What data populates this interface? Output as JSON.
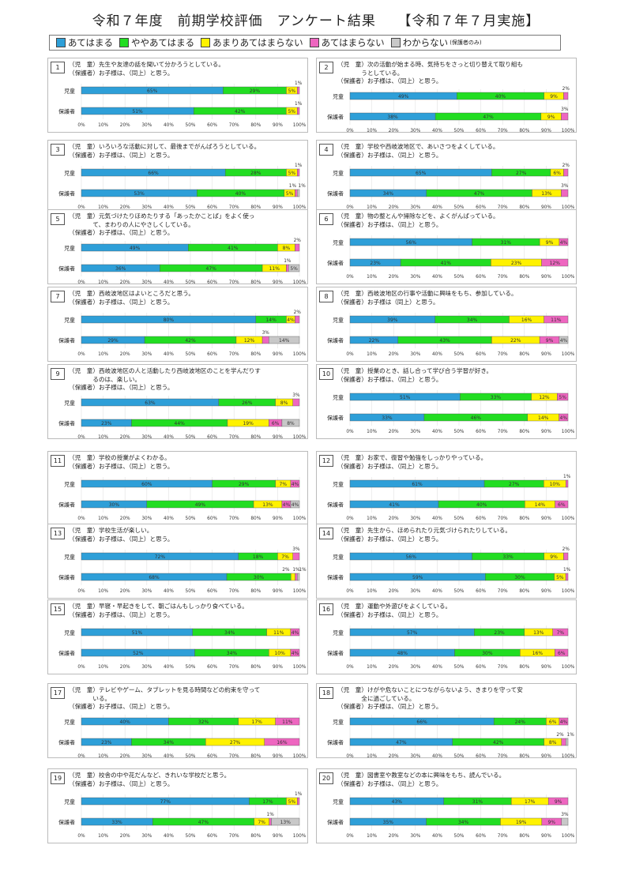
{
  "page": {
    "title": "令和７年度　前期学校評価　アンケート結果　　【令和７年７月実施】"
  },
  "legend": [
    {
      "label": "あてはまる",
      "color": "#2E9FD8"
    },
    {
      "label": "ややあてはまる",
      "color": "#22DD22"
    },
    {
      "label": "あまりあてはまらない",
      "color": "#FFF200"
    },
    {
      "label": "あてはまらない",
      "color": "#EE66C0"
    },
    {
      "label": "わからない",
      "color": "#C8C8C8",
      "note": "(保護者のみ)"
    }
  ],
  "axis_ticks": [
    "0%",
    "10%",
    "20%",
    "30%",
    "40%",
    "50%",
    "60%",
    "70%",
    "80%",
    "90%",
    "100%"
  ],
  "chart_data": [
    {
      "type": "bar",
      "num": "1",
      "q": "（児　童）先生や友達の話を聞いて分かろうとしている。\n（保護者）お子様は、（同上）と思う。",
      "rows": [
        {
          "label": "児童",
          "values": [
            65,
            29,
            5,
            1
          ],
          "labels": [
            "65%",
            "29%",
            "5%",
            "1%"
          ]
        },
        {
          "label": "保護者",
          "values": [
            51,
            42,
            5,
            1
          ],
          "labels": [
            "51%",
            "42%",
            "5%",
            "1%"
          ]
        }
      ]
    },
    {
      "type": "bar",
      "num": "2",
      "q": "（児　童）次の活動が始まる時、気持ちをさっと切り替えて取り組も\n　　　　うとしている。\n（保護者）お子様は、（同上）と思う。",
      "rows": [
        {
          "label": "児童",
          "values": [
            49,
            40,
            9,
            2
          ],
          "labels": [
            "49%",
            "40%",
            "9%",
            "2%"
          ]
        },
        {
          "label": "保護者",
          "values": [
            38,
            47,
            9,
            3
          ],
          "labels": [
            "38%",
            "47%",
            "9%",
            "3%"
          ]
        }
      ]
    },
    {
      "type": "bar",
      "num": "3",
      "q": "（児　童）いろいろな活動に対して、最後までがんばろうとしている。\n（保護者）お子様は、（同上）と思う。",
      "rows": [
        {
          "label": "児童",
          "values": [
            66,
            28,
            5,
            1
          ],
          "labels": [
            "66%",
            "28%",
            "5%",
            "1%"
          ]
        },
        {
          "label": "保護者",
          "values": [
            53,
            40,
            5,
            1,
            1
          ],
          "labels": [
            "53%",
            "40%",
            "5%",
            "1%",
            "1%"
          ]
        }
      ]
    },
    {
      "type": "bar",
      "num": "4",
      "q": "（児　童）学校や西岐波地区で、あいさつをよくしている。\n（保護者）お子様は、（同上）と思う。",
      "rows": [
        {
          "label": "児童",
          "values": [
            65,
            27,
            6,
            2
          ],
          "labels": [
            "65%",
            "27%",
            "6%",
            "2%"
          ]
        },
        {
          "label": "保護者",
          "values": [
            34,
            47,
            13,
            3
          ],
          "labels": [
            "34%",
            "47%",
            "13%",
            "3%"
          ]
        }
      ]
    },
    {
      "type": "bar",
      "num": "5",
      "q": "（児　童）元気づけたりほめたりする「あったかことば」をよく使っ\n　　　　て、まわりの人にやさしくしている。\n（保護者）お子様は、（同上）と思う。",
      "rows": [
        {
          "label": "児童",
          "values": [
            49,
            41,
            8,
            2
          ],
          "labels": [
            "49%",
            "41%",
            "8%",
            "2%"
          ]
        },
        {
          "label": "保護者",
          "values": [
            36,
            47,
            11,
            1,
            5
          ],
          "labels": [
            "36%",
            "47%",
            "11%",
            "1%",
            "5%"
          ]
        }
      ]
    },
    {
      "type": "bar",
      "num": "6",
      "q": "（児　童）物の整とんや掃除などを、よくがんばっている。\n（保護者）お子様は、（同上）と思う。",
      "rows": [
        {
          "label": "児童",
          "values": [
            56,
            31,
            9,
            4
          ],
          "labels": [
            "56%",
            "31%",
            "9%",
            "4%"
          ]
        },
        {
          "label": "保護者",
          "values": [
            23,
            41,
            23,
            12
          ],
          "labels": [
            "23%",
            "41%",
            "23%",
            "12%"
          ]
        }
      ]
    },
    {
      "type": "bar",
      "num": "7",
      "q": "（児　童）西岐波地区はよいところだと思う。\n（保護者）お子様は、（同上）と思う。",
      "rows": [
        {
          "label": "児童",
          "values": [
            80,
            14,
            4,
            2
          ],
          "labels": [
            "80%",
            "14%",
            "4%",
            "2%"
          ]
        },
        {
          "label": "保護者",
          "values": [
            29,
            42,
            12,
            3,
            14
          ],
          "labels": [
            "29%",
            "42%",
            "12%",
            "3%",
            "14%"
          ]
        }
      ]
    },
    {
      "type": "bar",
      "num": "8",
      "q": "（児　童）西岐波地区の行事や活動に興味をもち、参加している。\n（保護者）お子様は（同上）と思う。",
      "rows": [
        {
          "label": "児童",
          "values": [
            39,
            34,
            16,
            11
          ],
          "labels": [
            "39%",
            "34%",
            "16%",
            "11%"
          ]
        },
        {
          "label": "保護者",
          "values": [
            22,
            43,
            22,
            9,
            4
          ],
          "labels": [
            "22%",
            "43%",
            "22%",
            "9%",
            "4%"
          ]
        }
      ]
    },
    {
      "type": "bar",
      "num": "9",
      "q": "（児　童）西岐波地区の人と活動したり西岐波地区のことを学んだりす\n　　　　るのは、楽しい。\n（保護者）お子様は、（同上）と思う。",
      "rows": [
        {
          "label": "児童",
          "values": [
            63,
            26,
            8,
            3
          ],
          "labels": [
            "63%",
            "26%",
            "8%",
            "3%"
          ]
        },
        {
          "label": "保護者",
          "values": [
            23,
            44,
            19,
            6,
            8
          ],
          "labels": [
            "23%",
            "44%",
            "19%",
            "6%",
            "8%"
          ]
        }
      ]
    },
    {
      "type": "bar",
      "num": "10",
      "q": "（児　童）授業のとき、話し合って学び合う学習が好き。\n（保護者）お子様は、（同上）と思う。",
      "rows": [
        {
          "label": "児童",
          "values": [
            51,
            33,
            12,
            5
          ],
          "labels": [
            "51%",
            "33%",
            "12%",
            "5%"
          ]
        },
        {
          "label": "保護者",
          "values": [
            33,
            46,
            14,
            4
          ],
          "labels": [
            "33%",
            "46%",
            "14%",
            "4%"
          ]
        }
      ]
    },
    {
      "type": "bar",
      "num": "11",
      "q": "（児　童）学校の授業がよくわかる。\n（保護者）お子様は、（同上）と思う。",
      "rows": [
        {
          "label": "児童",
          "values": [
            60,
            29,
            7,
            4
          ],
          "labels": [
            "60%",
            "29%",
            "7%",
            "4%"
          ]
        },
        {
          "label": "保護者",
          "values": [
            30,
            49,
            13,
            4,
            4
          ],
          "labels": [
            "30%",
            "49%",
            "13%",
            "4%",
            "4%"
          ]
        }
      ]
    },
    {
      "type": "bar",
      "num": "12",
      "q": "（児　童）お家で、復習や勉強をしっかりやっている。\n（保護者）お子様は、（同上）と思う。",
      "rows": [
        {
          "label": "児童",
          "values": [
            61,
            27,
            10,
            1
          ],
          "labels": [
            "61%",
            "27%",
            "10%",
            "1%"
          ]
        },
        {
          "label": "保護者",
          "values": [
            41,
            40,
            14,
            6
          ],
          "labels": [
            "41%",
            "40%",
            "14%",
            "6%"
          ]
        }
      ]
    },
    {
      "type": "bar",
      "num": "13",
      "q": "（児　童）学校生活が楽しい。\n（保護者）お子様は、（同上）と思う。",
      "rows": [
        {
          "label": "児童",
          "values": [
            72,
            18,
            7,
            3
          ],
          "labels": [
            "72%",
            "18%",
            "7%",
            "3%"
          ]
        },
        {
          "label": "保護者",
          "values": [
            68,
            30,
            2,
            1,
            1
          ],
          "labels": [
            "68%",
            "30%",
            "2%",
            "1%",
            "1%"
          ]
        }
      ]
    },
    {
      "type": "bar",
      "num": "14",
      "q": "（児　童）先生から、ほめられたり元気づけられたりしている。\n（保護者）お子様は、（同上）と思う。",
      "rows": [
        {
          "label": "児童",
          "values": [
            56,
            33,
            9,
            2
          ],
          "labels": [
            "56%",
            "33%",
            "9%",
            "2%"
          ]
        },
        {
          "label": "保護者",
          "values": [
            59,
            30,
            5,
            1
          ],
          "labels": [
            "59%",
            "30%",
            "5%",
            "1%"
          ]
        }
      ]
    },
    {
      "type": "bar",
      "num": "15",
      "q": "（児　童）早寝・早起きをして、朝ごはんもしっかり食べている。\n（保護者）お子様は、（同上）と思う。",
      "rows": [
        {
          "label": "児童",
          "values": [
            51,
            34,
            11,
            4
          ],
          "labels": [
            "51%",
            "34%",
            "11%",
            "4%"
          ]
        },
        {
          "label": "保護者",
          "values": [
            52,
            34,
            10,
            4
          ],
          "labels": [
            "52%",
            "34%",
            "10%",
            "4%"
          ]
        }
      ]
    },
    {
      "type": "bar",
      "num": "16",
      "q": "（児　童）運動や外遊びをよくしている。\n（保護者）お子様は、（同上）と思う。",
      "rows": [
        {
          "label": "児童",
          "values": [
            57,
            23,
            13,
            7
          ],
          "labels": [
            "57%",
            "23%",
            "13%",
            "7%"
          ]
        },
        {
          "label": "保護者",
          "values": [
            48,
            30,
            16,
            6
          ],
          "labels": [
            "48%",
            "30%",
            "16%",
            "6%"
          ]
        }
      ]
    },
    {
      "type": "bar",
      "num": "17",
      "q": "（児　童）テレビやゲーム、タブレットを見る時間などの約束を守って\n　　　　いる。\n（保護者）お子様は、（同上）と思う。",
      "rows": [
        {
          "label": "児童",
          "values": [
            40,
            32,
            17,
            11
          ],
          "labels": [
            "40%",
            "32%",
            "17%",
            "11%"
          ]
        },
        {
          "label": "保護者",
          "values": [
            23,
            34,
            27,
            16
          ],
          "labels": [
            "23%",
            "34%",
            "27%",
            "16%"
          ]
        }
      ]
    },
    {
      "type": "bar",
      "num": "18",
      "q": "（児　童）けがや危ないことにつながらないよう、きまりを守って安\n　　　　全に過ごしている。\n（保護者）お子様は、（同上）と思う。",
      "rows": [
        {
          "label": "児童",
          "values": [
            66,
            24,
            6,
            4
          ],
          "labels": [
            "66%",
            "24%",
            "6%",
            "4%"
          ]
        },
        {
          "label": "保護者",
          "values": [
            47,
            42,
            8,
            2,
            1
          ],
          "labels": [
            "47%",
            "42%",
            "8%",
            "2%",
            "1%"
          ]
        }
      ]
    },
    {
      "type": "bar",
      "num": "19",
      "q": "（児　童）校舎の中や花だんなど、きれいな学校だと思う。\n（保護者）お子様は、（同上）と思う。",
      "rows": [
        {
          "label": "児童",
          "values": [
            77,
            17,
            5,
            1
          ],
          "labels": [
            "77%",
            "17%",
            "5%",
            "1%"
          ]
        },
        {
          "label": "保護者",
          "values": [
            33,
            47,
            7,
            1,
            13
          ],
          "labels": [
            "33%",
            "47%",
            "7%",
            "1%",
            "13%"
          ]
        }
      ]
    },
    {
      "type": "bar",
      "num": "20",
      "q": "（児　童）図書室や教室などの本に興味をもち、読んでいる。\n（保護者）お子様は、（同上）と思う。",
      "rows": [
        {
          "label": "児童",
          "values": [
            43,
            31,
            17,
            9
          ],
          "labels": [
            "43%",
            "31%",
            "17%",
            "9%"
          ]
        },
        {
          "label": "保護者",
          "values": [
            35,
            34,
            19,
            9,
            3
          ],
          "labels": [
            "35%",
            "34%",
            "19%",
            "9%",
            "3%"
          ]
        }
      ]
    }
  ]
}
